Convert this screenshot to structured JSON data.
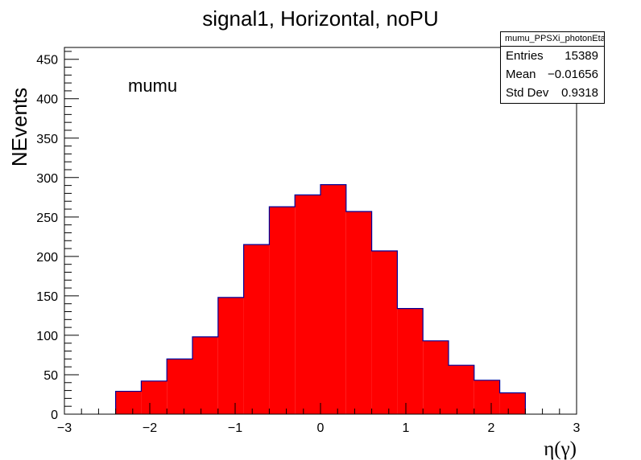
{
  "chart_data": {
    "type": "histogram",
    "title": "signal1, Horizontal, noPU",
    "xlabel": "η(γ)",
    "ylabel": "NEvents",
    "xlim": [
      -3,
      3
    ],
    "ylim": [
      0,
      465
    ],
    "xticks": [
      -3,
      -2,
      -1,
      0,
      1,
      2,
      3
    ],
    "yticks": [
      0,
      50,
      100,
      150,
      200,
      250,
      300,
      350,
      400,
      450
    ],
    "bin_edges": [
      -2.4,
      -2.1,
      -1.8,
      -1.5,
      -1.2,
      -0.9,
      -0.6,
      -0.3,
      0.0,
      0.3,
      0.6,
      0.9,
      1.2,
      1.5,
      1.8,
      2.1,
      2.4
    ],
    "values": [
      29,
      42,
      70,
      98,
      148,
      215,
      263,
      278,
      291,
      257,
      207,
      134,
      93,
      62,
      43,
      27
    ],
    "fill_color": "#ff0000",
    "line_color": "#000099",
    "annotation": "mumu",
    "legend_position": "top-right",
    "stats": {
      "name": "mumu_PPSXi_photonEta",
      "rows": [
        {
          "label": "Entries",
          "value": "15389"
        },
        {
          "label": "Mean",
          "value": "−0.01656"
        },
        {
          "label": "Std Dev",
          "value": "0.9318"
        }
      ]
    }
  }
}
